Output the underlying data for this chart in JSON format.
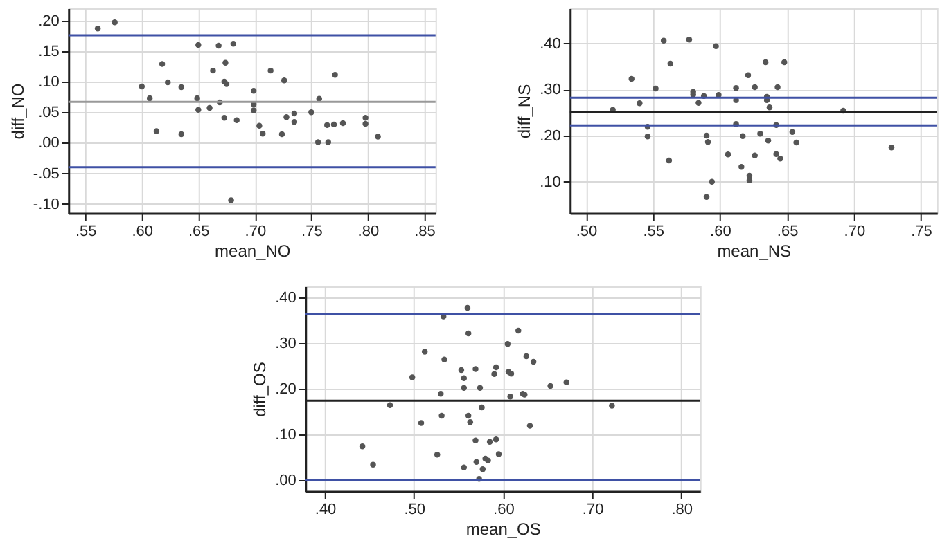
{
  "chart_data": [
    {
      "type": "scatter",
      "xlabel": "mean_NO",
      "ylabel": "diff_NO",
      "grid": true,
      "marker": "circle",
      "xlim": [
        0.535,
        0.86
      ],
      "ylim": [
        -0.115,
        0.22
      ],
      "xticks": [
        {
          "value": 0.55,
          "label": ".55"
        },
        {
          "value": 0.6,
          "label": ".60"
        },
        {
          "value": 0.65,
          "label": ".65"
        },
        {
          "value": 0.7,
          "label": ".70"
        },
        {
          "value": 0.75,
          "label": ".75"
        },
        {
          "value": 0.8,
          "label": ".80"
        },
        {
          "value": 0.85,
          "label": ".85"
        }
      ],
      "yticks": [
        {
          "value": -0.1,
          "label": "-.10"
        },
        {
          "value": -0.05,
          "label": "-.05"
        },
        {
          "value": 0.0,
          "label": ".00"
        },
        {
          "value": 0.05,
          "label": ".05"
        },
        {
          "value": 0.1,
          "label": ".10"
        },
        {
          "value": 0.15,
          "label": ".15"
        },
        {
          "value": 0.2,
          "label": ".20"
        }
      ],
      "ref_lines": [
        {
          "axis": "y",
          "value": 0.176,
          "color": "#3f51a5"
        },
        {
          "axis": "y",
          "value": 0.067,
          "color": "#999999"
        },
        {
          "axis": "y",
          "value": -0.04,
          "color": "#3f51a5"
        }
      ],
      "series": [
        {
          "color": "#555555",
          "x": [
            0.561,
            0.576,
            0.6,
            0.607,
            0.613,
            0.618,
            0.623,
            0.635,
            0.635,
            0.649,
            0.65,
            0.65,
            0.66,
            0.663,
            0.668,
            0.669,
            0.673,
            0.673,
            0.674,
            0.675,
            0.679,
            0.681,
            0.684,
            0.699,
            0.699,
            0.699,
            0.704,
            0.707,
            0.714,
            0.724,
            0.726,
            0.728,
            0.735,
            0.735,
            0.75,
            0.756,
            0.757,
            0.764,
            0.765,
            0.77,
            0.771,
            0.778,
            0.798,
            0.798,
            0.809
          ],
          "values": [
            0.187,
            0.197,
            0.092,
            0.073,
            0.019,
            0.129,
            0.099,
            0.014,
            0.091,
            0.073,
            0.16,
            0.054,
            0.057,
            0.118,
            0.159,
            0.066,
            0.041,
            0.1,
            0.131,
            0.096,
            -0.094,
            0.162,
            0.037,
            0.085,
            0.063,
            0.053,
            0.028,
            0.015,
            0.118,
            0.014,
            0.102,
            0.042,
            0.048,
            0.034,
            0.05,
            0.001,
            0.072,
            0.029,
            0.001,
            0.03,
            0.111,
            0.032,
            0.041,
            0.031,
            0.01
          ]
        }
      ]
    },
    {
      "type": "scatter",
      "xlabel": "mean_NS",
      "ylabel": "diff_NS",
      "grid": true,
      "marker": "circle",
      "xlim": [
        0.488,
        0.762
      ],
      "ylim": [
        0.032,
        0.476
      ],
      "xticks": [
        {
          "value": 0.5,
          "label": ".50"
        },
        {
          "value": 0.55,
          "label": ".55"
        },
        {
          "value": 0.6,
          "label": ".60"
        },
        {
          "value": 0.65,
          "label": ".65"
        },
        {
          "value": 0.7,
          "label": ".70"
        },
        {
          "value": 0.75,
          "label": ".75"
        }
      ],
      "yticks": [
        {
          "value": 0.1,
          "label": ".10"
        },
        {
          "value": 0.2,
          "label": ".20"
        },
        {
          "value": 0.3,
          "label": ".30"
        },
        {
          "value": 0.4,
          "label": ".40"
        }
      ],
      "ref_lines": [
        {
          "axis": "y",
          "value": 0.282,
          "color": "#3f51a5"
        },
        {
          "axis": "y",
          "value": 0.251,
          "color": "#222222"
        },
        {
          "axis": "y",
          "value": 0.222,
          "color": "#3f51a5"
        }
      ],
      "series": [
        {
          "color": "#555555",
          "x": [
            0.52,
            0.534,
            0.54,
            0.546,
            0.546,
            0.552,
            0.558,
            0.562,
            0.563,
            0.577,
            0.58,
            0.58,
            0.584,
            0.588,
            0.59,
            0.591,
            0.59,
            0.594,
            0.597,
            0.599,
            0.606,
            0.612,
            0.612,
            0.612,
            0.616,
            0.617,
            0.621,
            0.622,
            0.622,
            0.626,
            0.626,
            0.63,
            0.634,
            0.635,
            0.635,
            0.636,
            0.637,
            0.642,
            0.642,
            0.643,
            0.645,
            0.648,
            0.654,
            0.657,
            0.692,
            0.728
          ],
          "values": [
            0.256,
            0.323,
            0.27,
            0.219,
            0.198,
            0.302,
            0.406,
            0.146,
            0.356,
            0.408,
            0.295,
            0.289,
            0.271,
            0.286,
            0.2,
            0.186,
            0.067,
            0.1,
            0.394,
            0.288,
            0.159,
            0.303,
            0.277,
            0.225,
            0.132,
            0.199,
            0.331,
            0.113,
            0.103,
            0.305,
            0.157,
            0.204,
            0.359,
            0.284,
            0.277,
            0.189,
            0.261,
            0.16,
            0.223,
            0.305,
            0.15,
            0.359,
            0.208,
            0.185,
            0.254,
            0.174
          ]
        }
      ]
    },
    {
      "type": "scatter",
      "xlabel": "mean_OS",
      "ylabel": "diff_OS",
      "grid": true,
      "marker": "circle",
      "xlim": [
        0.378,
        0.821
      ],
      "ylim": [
        -0.024,
        0.424
      ],
      "xticks": [
        {
          "value": 0.4,
          "label": ".40"
        },
        {
          "value": 0.5,
          "label": ".50"
        },
        {
          "value": 0.6,
          "label": ".60"
        },
        {
          "value": 0.7,
          "label": ".70"
        },
        {
          "value": 0.8,
          "label": ".80"
        }
      ],
      "yticks": [
        {
          "value": 0.0,
          "label": ".00"
        },
        {
          "value": 0.1,
          "label": ".10"
        },
        {
          "value": 0.2,
          "label": ".20"
        },
        {
          "value": 0.3,
          "label": ".30"
        },
        {
          "value": 0.4,
          "label": ".40"
        }
      ],
      "ref_lines": [
        {
          "axis": "y",
          "value": 0.363,
          "color": "#3f51a5"
        },
        {
          "axis": "y",
          "value": 0.174,
          "color": "#222222"
        },
        {
          "axis": "y",
          "value": 0.001,
          "color": "#3f51a5"
        }
      ],
      "series": [
        {
          "color": "#555555",
          "x": [
            0.442,
            0.454,
            0.473,
            0.498,
            0.508,
            0.512,
            0.526,
            0.53,
            0.531,
            0.533,
            0.534,
            0.553,
            0.556,
            0.556,
            0.556,
            0.56,
            0.561,
            0.561,
            0.563,
            0.569,
            0.569,
            0.57,
            0.573,
            0.574,
            0.576,
            0.577,
            0.58,
            0.583,
            0.585,
            0.59,
            0.592,
            0.592,
            0.595,
            0.605,
            0.606,
            0.609,
            0.608,
            0.617,
            0.622,
            0.624,
            0.626,
            0.63,
            0.634,
            0.653,
            0.671,
            0.722
          ],
          "values": [
            0.074,
            0.034,
            0.164,
            0.225,
            0.125,
            0.281,
            0.056,
            0.189,
            0.141,
            0.358,
            0.264,
            0.241,
            0.223,
            0.202,
            0.028,
            0.377,
            0.321,
            0.141,
            0.127,
            0.243,
            0.087,
            0.04,
            0.003,
            0.202,
            0.159,
            0.024,
            0.047,
            0.043,
            0.084,
            0.232,
            0.247,
            0.089,
            0.057,
            0.298,
            0.237,
            0.233,
            0.183,
            0.327,
            0.189,
            0.187,
            0.271,
            0.119,
            0.259,
            0.206,
            0.214,
            0.163
          ]
        }
      ]
    }
  ]
}
